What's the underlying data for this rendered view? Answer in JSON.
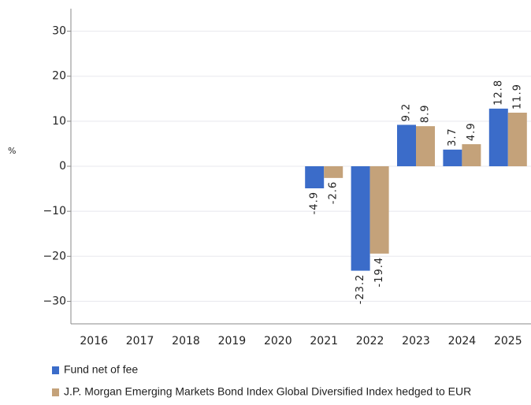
{
  "chart_data": {
    "type": "bar",
    "y_label": "%",
    "categories": [
      "2016",
      "2017",
      "2018",
      "2019",
      "2020",
      "2021",
      "2022",
      "2023",
      "2024",
      "2025"
    ],
    "series": [
      {
        "name": "Fund net of fee",
        "color": "#3b6cc9",
        "values": [
          null,
          null,
          null,
          null,
          null,
          -4.9,
          -23.2,
          9.2,
          3.7,
          12.8
        ]
      },
      {
        "name": "J.P. Morgan Emerging Markets Bond Index Global Diversified Index hedged to EUR",
        "color": "#c4a27a",
        "values": [
          null,
          null,
          null,
          null,
          null,
          -2.6,
          -19.4,
          8.9,
          4.9,
          11.9
        ]
      }
    ],
    "ylim": [
      -35,
      35
    ],
    "yticks": [
      {
        "value": -30,
        "label": "−30"
      },
      {
        "value": -20,
        "label": "−20"
      },
      {
        "value": -10,
        "label": "−10"
      },
      0,
      10,
      20,
      30
    ],
    "grid": true
  }
}
